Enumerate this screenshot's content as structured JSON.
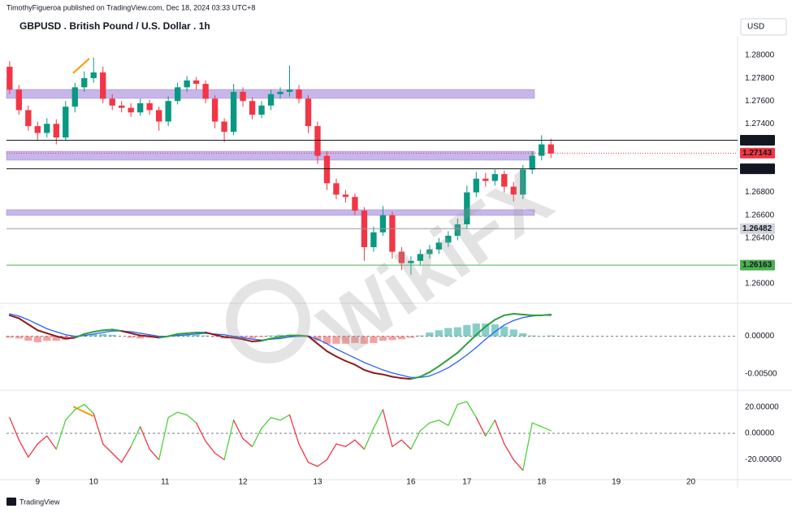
{
  "header": {
    "publisher": "TimothyFigueroa published on TradingView.com, Dec 18, 2024 03:33 UTC+8",
    "currency": "USD"
  },
  "watermark": "WikiFX",
  "footer": "TradingView",
  "chart_data": [
    {
      "type": "candlestick",
      "title": "GBPUSD . British Pound / U.S. Dollar . 1h",
      "x": [
        1,
        4,
        7,
        10,
        13,
        16,
        19,
        22,
        25,
        28,
        31,
        34,
        37,
        40,
        43,
        46,
        49,
        52,
        55,
        58,
        61,
        64,
        67,
        70,
        73,
        76,
        79,
        82,
        85,
        88,
        91,
        94,
        97,
        100,
        103,
        106,
        109,
        112,
        115,
        118,
        121,
        124,
        127,
        130,
        133,
        136,
        139,
        142,
        145,
        148,
        151,
        154,
        157,
        160,
        163,
        166,
        169,
        172,
        175
      ],
      "open": [
        1.279,
        1.277,
        1.2752,
        1.2738,
        1.2732,
        1.274,
        1.2728,
        1.2755,
        1.2772,
        1.278,
        1.2785,
        1.2762,
        1.2756,
        1.2754,
        1.275,
        1.2758,
        1.2752,
        1.2742,
        1.276,
        1.2772,
        1.2778,
        1.2775,
        1.2762,
        1.2742,
        1.2733,
        1.2768,
        1.276,
        1.2748,
        1.2756,
        1.2766,
        1.2768,
        1.277,
        1.2762,
        1.2738,
        1.2712,
        1.2688,
        1.2678,
        1.2676,
        1.2664,
        1.2632,
        1.2645,
        1.266,
        1.2628,
        1.2618,
        1.262,
        1.2626,
        1.263,
        1.2636,
        1.2642,
        1.2652,
        1.268,
        1.2692,
        1.269,
        1.2696,
        1.2685,
        1.2678,
        1.27,
        1.2712,
        1.2722
      ],
      "high": [
        1.2795,
        1.2774,
        1.2756,
        1.2742,
        1.2745,
        1.2744,
        1.276,
        1.2776,
        1.2786,
        1.2798,
        1.279,
        1.2766,
        1.276,
        1.2758,
        1.2762,
        1.2761,
        1.2755,
        1.2764,
        1.2776,
        1.2782,
        1.2781,
        1.2778,
        1.2765,
        1.2745,
        1.2775,
        1.2772,
        1.2763,
        1.276,
        1.277,
        1.2772,
        1.2791,
        1.2774,
        1.2765,
        1.2742,
        1.2716,
        1.2692,
        1.2682,
        1.2679,
        1.2667,
        1.265,
        1.2668,
        1.2663,
        1.2632,
        1.2624,
        1.263,
        1.2634,
        1.264,
        1.2646,
        1.2657,
        1.2686,
        1.2698,
        1.2697,
        1.27,
        1.2699,
        1.2689,
        1.2704,
        1.2716,
        1.273,
        1.2727
      ],
      "low": [
        1.2766,
        1.2748,
        1.2734,
        1.2726,
        1.2728,
        1.2722,
        1.2725,
        1.275,
        1.2768,
        1.2776,
        1.2758,
        1.2752,
        1.275,
        1.2746,
        1.2747,
        1.2748,
        1.2734,
        1.2738,
        1.2757,
        1.2768,
        1.277,
        1.2758,
        1.2736,
        1.2724,
        1.273,
        1.2755,
        1.2744,
        1.2745,
        1.2752,
        1.2762,
        1.2764,
        1.2758,
        1.2732,
        1.2705,
        1.2682,
        1.2674,
        1.2671,
        1.266,
        1.262,
        1.2628,
        1.2642,
        1.2622,
        1.2612,
        1.2608,
        1.2616,
        1.2622,
        1.2626,
        1.2632,
        1.2638,
        1.2648,
        1.2676,
        1.2685,
        1.2686,
        1.268,
        1.2672,
        1.2674,
        1.2696,
        1.2708,
        1.271
      ],
      "close": [
        1.277,
        1.2752,
        1.2738,
        1.2732,
        1.274,
        1.2728,
        1.2755,
        1.2772,
        1.278,
        1.2785,
        1.2762,
        1.2756,
        1.2754,
        1.275,
        1.2758,
        1.2752,
        1.2742,
        1.276,
        1.2772,
        1.2778,
        1.2775,
        1.2762,
        1.2742,
        1.2733,
        1.2768,
        1.276,
        1.2748,
        1.2756,
        1.2766,
        1.2768,
        1.277,
        1.2762,
        1.2738,
        1.2712,
        1.2688,
        1.2678,
        1.2676,
        1.2664,
        1.2632,
        1.2645,
        1.266,
        1.2628,
        1.2618,
        1.262,
        1.2626,
        1.263,
        1.2636,
        1.2642,
        1.2652,
        1.268,
        1.2692,
        1.269,
        1.2696,
        1.2685,
        1.2678,
        1.27,
        1.2712,
        1.2722,
        1.2714
      ],
      "up_color": "#089981",
      "down_color": "#f23645",
      "xlim": [
        0,
        235
      ],
      "xticks": [
        {
          "value": 10,
          "label": "9"
        },
        {
          "value": 28,
          "label": "10"
        },
        {
          "value": 51,
          "label": "11"
        },
        {
          "value": 76,
          "label": "12"
        },
        {
          "value": 100,
          "label": "13"
        },
        {
          "value": 130,
          "label": "16"
        },
        {
          "value": 148,
          "label": "17"
        },
        {
          "value": 172,
          "label": "18"
        },
        {
          "value": 196,
          "label": "19"
        },
        {
          "value": 220,
          "label": "20"
        }
      ],
      "ylim": [
        1.25836,
        1.28164
      ],
      "yticks": [
        {
          "value": 1.26,
          "label": "1.26000"
        },
        {
          "value": 1.264,
          "label": "1.26400"
        },
        {
          "value": 1.266,
          "label": "1.26600"
        },
        {
          "value": 1.268,
          "label": "1.26800"
        },
        {
          "value": 1.274,
          "label": "1.27400"
        },
        {
          "value": 1.276,
          "label": "1.27600"
        },
        {
          "value": 1.278,
          "label": "1.27800"
        },
        {
          "value": 1.28,
          "label": "1.28000"
        }
      ],
      "zones": [
        {
          "low": 1.27623,
          "high": 1.27701
        },
        {
          "low": 1.27082,
          "high": 1.2716
        },
        {
          "low": 1.26598,
          "high": 1.26648
        }
      ],
      "zone_color": "#c7b6ea",
      "price_lines": [
        {
          "value": 1.27256,
          "color": "#131722",
          "badge_color": "#131722",
          "text_color": "#ffffff"
        },
        {
          "value": 1.27143,
          "color": "#f23645",
          "badge_color": "#f23645",
          "text_color": "#ffffff",
          "dotted": true
        },
        {
          "value": 1.27006,
          "color": "#131722",
          "badge_color": "#131722",
          "text_color": "#ffffff"
        },
        {
          "value": 1.26482,
          "color": "#9598a1",
          "badge_color": "#d1d4dc",
          "text_color": "#131722"
        },
        {
          "value": 1.26163,
          "color": "#4caf50",
          "badge_color": "#4caf50",
          "text_color": "#131722"
        }
      ]
    },
    {
      "type": "macd",
      "lines": [
        {
          "color": "#8e1b1b",
          "up_color": "#2e9e3e",
          "values": [
            0.0028,
            0.0024,
            0.0016,
            0.0008,
            0.0004,
            0.0,
            -0.0003,
            -0.0002,
            0.0003,
            0.0006,
            0.0008,
            0.0009,
            0.0007,
            0.0004,
            0.0001,
            0.0,
            -0.0002,
            0.0,
            0.0003,
            0.0004,
            0.0005,
            0.0005,
            0.0002,
            -0.0001,
            -0.0002,
            -0.0004,
            -0.0007,
            -0.0006,
            -0.0003,
            -0.0001,
            0.0001,
            0.0001,
            0.0,
            -0.001,
            -0.002,
            -0.0027,
            -0.0033,
            -0.0038,
            -0.0045,
            -0.0049,
            -0.0051,
            -0.0054,
            -0.0056,
            -0.0057,
            -0.0054,
            -0.0048,
            -0.004,
            -0.0031,
            -0.0022,
            -0.001,
            0.0002,
            0.0013,
            0.0022,
            0.0028,
            0.003,
            0.0029,
            0.0028,
            0.0028,
            0.0029
          ]
        },
        {
          "color": "#2962ff",
          "values": [
            0.003,
            0.0027,
            0.0022,
            0.0016,
            0.001,
            0.0006,
            0.0002,
            0.0,
            0.0001,
            0.0003,
            0.0005,
            0.0007,
            0.0007,
            0.0006,
            0.0004,
            0.0002,
            0.0,
            0.0,
            0.0001,
            0.0002,
            0.0003,
            0.0004,
            0.0003,
            0.0002,
            0.0,
            -0.0002,
            -0.0004,
            -0.0005,
            -0.0004,
            -0.0003,
            -0.0001,
            0.0,
            0.0,
            -0.0004,
            -0.001,
            -0.0017,
            -0.0023,
            -0.0029,
            -0.0035,
            -0.004,
            -0.0045,
            -0.0049,
            -0.0052,
            -0.0055,
            -0.0055,
            -0.0053,
            -0.0048,
            -0.0042,
            -0.0034,
            -0.0025,
            -0.0015,
            -0.0004,
            0.0006,
            0.0015,
            0.0021,
            0.0025,
            0.0027,
            0.0028,
            0.0028
          ]
        }
      ],
      "histogram": {
        "up_color": "#26a69a",
        "down_color": "#ef5350",
        "values": [
          -0.0002,
          -0.0003,
          -0.0006,
          -0.0008,
          -0.0006,
          -0.0006,
          -0.0005,
          -0.0002,
          0.0002,
          0.0003,
          0.0003,
          0.0002,
          0.0,
          -0.0002,
          -0.0003,
          -0.0002,
          -0.0002,
          0.0,
          0.0002,
          0.0002,
          0.0002,
          0.0001,
          -0.0001,
          -0.0003,
          -0.0002,
          -0.0002,
          -0.0003,
          -0.0001,
          0.0001,
          0.0002,
          0.0002,
          0.0001,
          0.0,
          -0.0006,
          -0.001,
          -0.001,
          -0.001,
          -0.0009,
          -0.001,
          -0.0009,
          -0.0006,
          -0.0005,
          -0.0004,
          -0.0002,
          0.0001,
          0.0005,
          0.0008,
          0.0011,
          0.0012,
          0.0015,
          0.0017,
          0.0017,
          0.0016,
          0.0013,
          0.0009,
          0.0004,
          0.0001,
          0.0,
          0.0001
        ]
      },
      "ylim": [
        -0.0071,
        0.0043
      ],
      "yticks": [
        {
          "value": 0,
          "label": "0.00000"
        },
        {
          "value": -0.005,
          "label": "-0.00500"
        }
      ],
      "zero_line": true
    },
    {
      "type": "oscillator",
      "lines": [
        {
          "color": "#f23645",
          "up_color": "#4cd137",
          "values": [
            12,
            -5,
            -18,
            -8,
            -2,
            -12,
            10,
            18,
            22,
            15,
            -8,
            -15,
            -22,
            -10,
            5,
            -12,
            -20,
            12,
            16,
            14,
            8,
            -6,
            -15,
            -20,
            10,
            -4,
            -10,
            4,
            12,
            10,
            14,
            -8,
            -22,
            -25,
            -20,
            -8,
            -10,
            -5,
            -12,
            4,
            18,
            -10,
            -5,
            -12,
            2,
            8,
            10,
            6,
            22,
            24,
            12,
            -2,
            10,
            -8,
            -20,
            -28,
            8,
            5,
            2
          ]
        }
      ],
      "ylim": [
        -34.5,
        32.1
      ],
      "yticks": [
        {
          "value": 20,
          "label": "20.00000"
        },
        {
          "value": 0,
          "label": "0.00000"
        },
        {
          "value": -20,
          "label": "-20.00000"
        }
      ],
      "zero_line": true
    }
  ]
}
